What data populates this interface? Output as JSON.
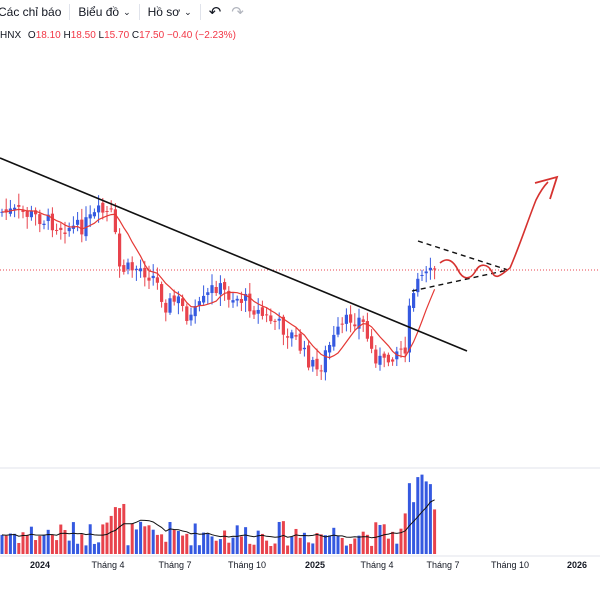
{
  "toolbar": {
    "indicators_label": "Các chỉ báo",
    "chart_label": "Biểu đồ",
    "profile_label": "Hồ sơ",
    "undo_icon": "undo-icon",
    "redo_icon": "redo-icon"
  },
  "legend": {
    "exchange": "HNX",
    "open_label": "O",
    "open": "18.10",
    "high_label": "H",
    "high": "18.50",
    "low_label": "L",
    "low": "15.70",
    "close_label": "C",
    "close": "17.50",
    "change": "−0.40 (−2.23%)"
  },
  "colors": {
    "up": "#3559e0",
    "down": "#e8434c",
    "ma": "#e53935",
    "trend": "#111111",
    "annotation": "#d6322f"
  },
  "chart_data": {
    "type": "candlestick",
    "x_tick_labels": [
      {
        "label": "2024",
        "bold": true
      },
      {
        "label": "Tháng 4",
        "bold": false
      },
      {
        "label": "Tháng 7",
        "bold": false
      },
      {
        "label": "Tháng 10",
        "bold": false
      },
      {
        "label": "2025",
        "bold": true
      },
      {
        "label": "Tháng 4",
        "bold": false
      },
      {
        "label": "Tháng 7",
        "bold": false
      },
      {
        "label": "Tháng 10",
        "bold": false
      },
      {
        "label": "2026",
        "bold": true
      }
    ],
    "last_close": 17.5,
    "grid": false,
    "price_scale_visible": false
  }
}
